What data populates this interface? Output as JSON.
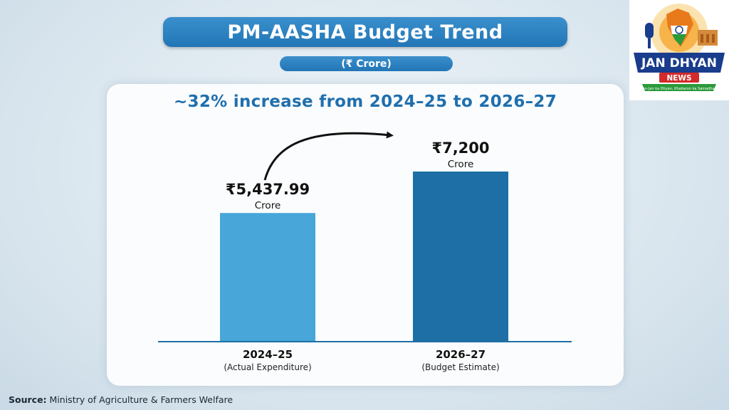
{
  "title": "PM-AASHA Budget Trend",
  "unit": "(₹ Crore)",
  "headline": "~32% increase from 2024–25 to 2026–27",
  "chart_data": {
    "type": "bar",
    "categories": [
      "2024–25",
      "2026–27"
    ],
    "category_sublabels": [
      "(Actual Expenditure)",
      "(Budget Estimate)"
    ],
    "values": [
      5437.99,
      7200
    ],
    "value_labels": [
      "₹5,437.99",
      "₹7,200"
    ],
    "value_unit_label": "Crore",
    "colors": [
      "#48a6d8",
      "#1d6fa6"
    ],
    "ylim": [
      0,
      8000
    ],
    "grid": false,
    "legend": "none",
    "annotations": [
      "curved arrow from 2024–25 bar to 2026–27 bar"
    ]
  },
  "logo": {
    "line1": "JAN DHYAN",
    "line2": "NEWS",
    "tagline": "Jan-Jan ka Dhyan, Khabaron ka Samadhan",
    "colors": [
      "#e87a1c",
      "#1a3c8c",
      "#d42a2a",
      "#2b9a3a"
    ]
  },
  "source": {
    "label": "Source:",
    "text": "Ministry of Agriculture & Farmers Welfare"
  }
}
